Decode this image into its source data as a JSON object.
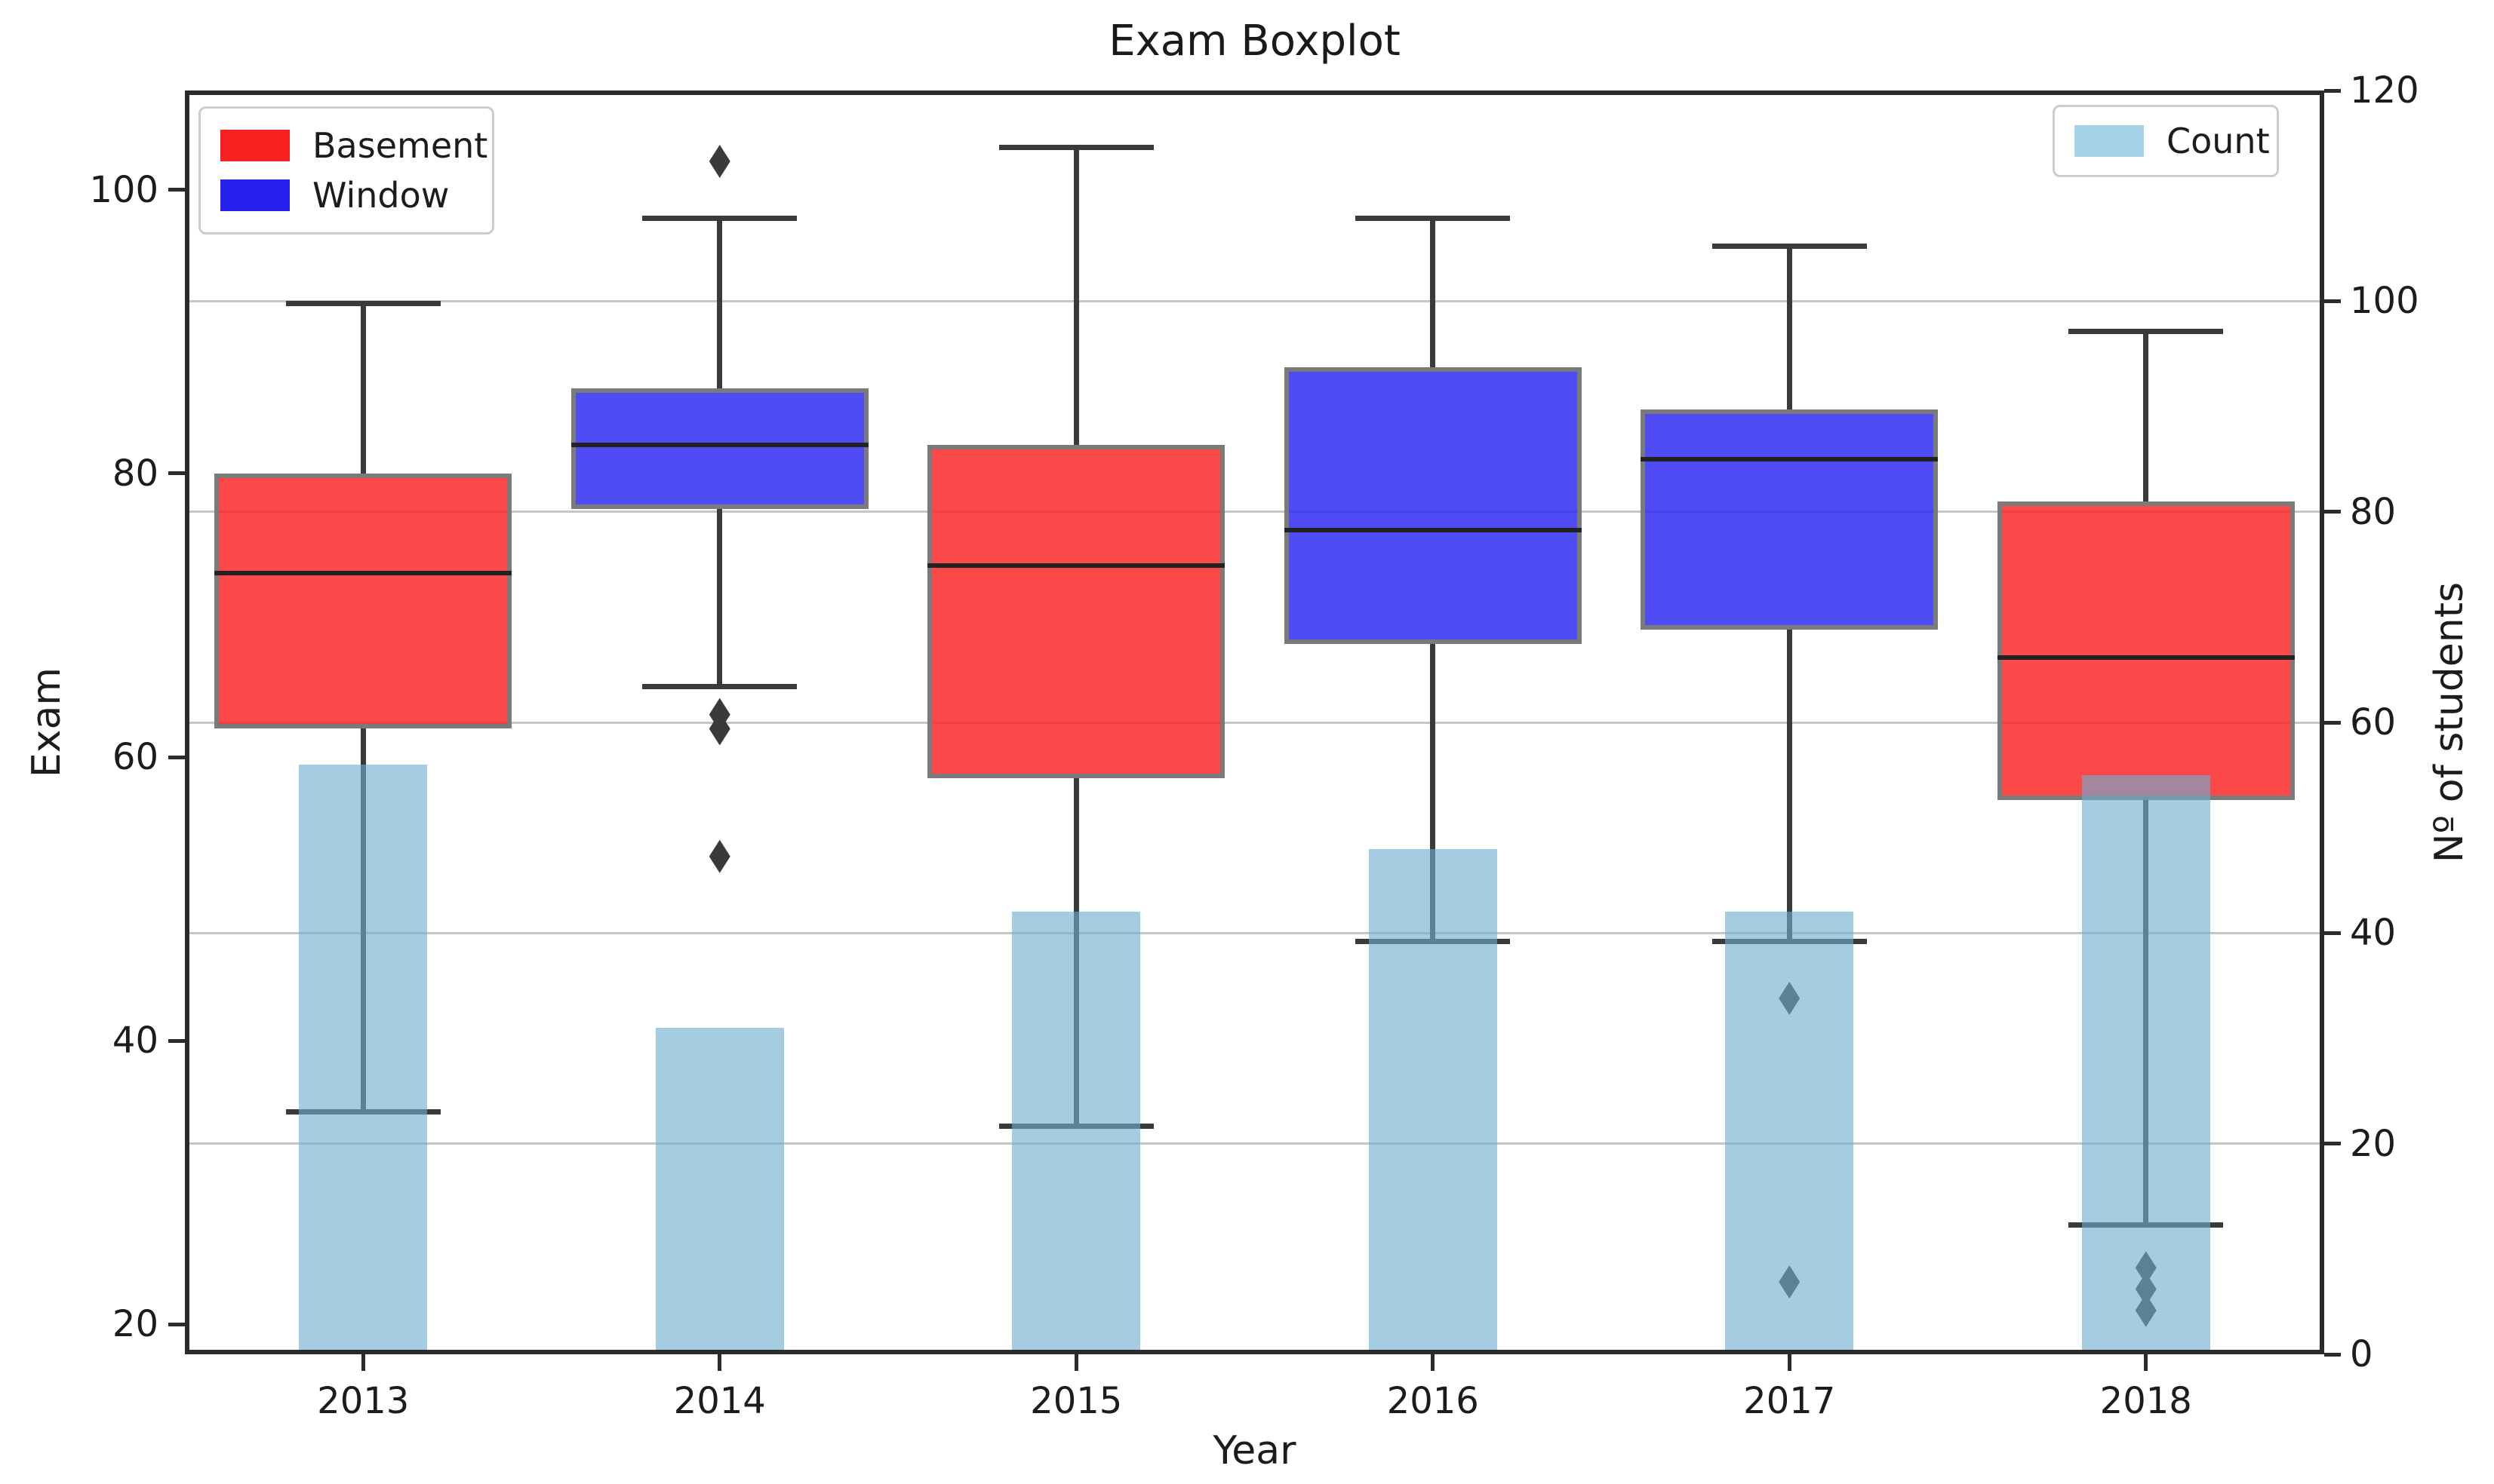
{
  "title": "Exam Boxplot",
  "legend": {
    "left": [
      {
        "label": "Basement",
        "color": "#f92222"
      },
      {
        "label": "Window",
        "color": "#2520ee"
      }
    ],
    "right": [
      {
        "label": "Count",
        "color": "#a6d2e7"
      }
    ]
  },
  "chart_data": {
    "type": "boxplot",
    "title": "Exam Boxplot",
    "xlabel": "Year",
    "ylabel_left": "Exam",
    "ylabel_right": "Nº of students",
    "categories": [
      "2013",
      "2014",
      "2015",
      "2016",
      "2017",
      "2018"
    ],
    "y_left": {
      "ticks": [
        20,
        40,
        60,
        80,
        100
      ],
      "range": [
        17.9,
        107.0
      ]
    },
    "y_right": {
      "ticks": [
        0,
        20,
        40,
        60,
        80,
        100,
        120
      ],
      "range": [
        0,
        120
      ]
    },
    "grid": "horizontal gridlines aligned with right-axis ticks 20,40,60,80,100",
    "legend_position": {
      "boxes": "upper left",
      "count": "upper right"
    },
    "boxplots": [
      {
        "category": "2013",
        "group": "Basement",
        "color_key": "box_red",
        "whislo": 35,
        "q1": 62,
        "med": 73,
        "q3": 80,
        "whishi": 92,
        "fliers": []
      },
      {
        "category": "2014",
        "group": "Window",
        "color_key": "box_blue",
        "whislo": 65,
        "q1": 77.5,
        "med": 82,
        "q3": 86,
        "whishi": 98,
        "fliers": [
          102,
          63,
          62,
          53
        ]
      },
      {
        "category": "2015",
        "group": "Basement",
        "color_key": "box_red",
        "whislo": 34,
        "q1": 58.5,
        "med": 73.5,
        "q3": 82,
        "whishi": 103,
        "fliers": []
      },
      {
        "category": "2016",
        "group": "Window",
        "color_key": "box_blue",
        "whislo": 47,
        "q1": 68,
        "med": 76,
        "q3": 87.5,
        "whishi": 98,
        "fliers": []
      },
      {
        "category": "2017",
        "group": "Window",
        "color_key": "box_blue",
        "whislo": 47,
        "q1": 69,
        "med": 81,
        "q3": 84.5,
        "whishi": 96,
        "fliers": [
          43,
          23
        ]
      },
      {
        "category": "2018",
        "group": "Basement",
        "color_key": "box_red",
        "whislo": 27,
        "q1": 57,
        "med": 67,
        "q3": 78,
        "whishi": 90,
        "fliers": [
          24,
          22.5,
          21
        ]
      }
    ],
    "bars": {
      "name": "Count",
      "axis": "right",
      "values": [
        56,
        31,
        42,
        48,
        42,
        55
      ]
    }
  },
  "colors": {
    "box_red": "rgba(250,32,32,0.82)",
    "box_blue": "rgba(42,36,242,0.82)",
    "box_edge": "#7a7a7a",
    "median": "#222222",
    "whisker": "#3a3a3a",
    "flier": "#3a3a3a",
    "bar": "rgba(109,174,209,0.62)",
    "grid": "#c6c6c6",
    "spine": "#2b2b2b",
    "text": "#1c1c1c"
  }
}
